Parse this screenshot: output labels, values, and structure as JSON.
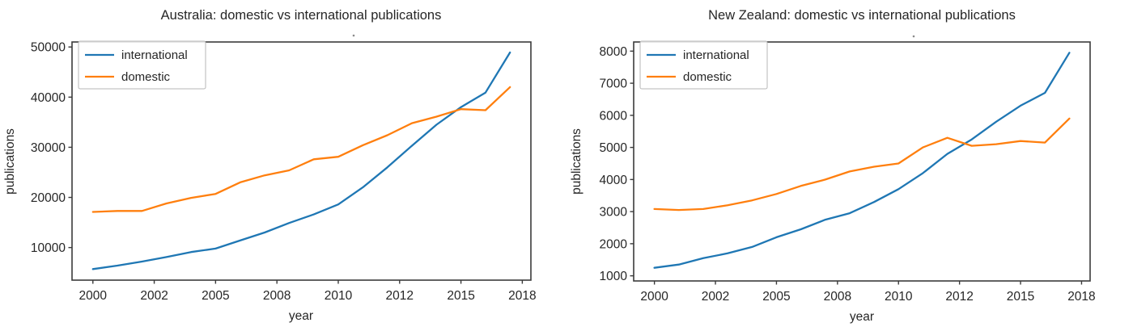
{
  "figure": {
    "background": "#ffffff",
    "text_color": "#262626"
  },
  "chart_data": [
    {
      "type": "line",
      "title": "Australia: domestic vs international publications",
      "xlabel": "year",
      "ylabel": "publications",
      "grid": false,
      "legend_position": "upper left",
      "legend": [
        "international",
        "domestic"
      ],
      "x": [
        2000,
        2001,
        2002,
        2003,
        2004,
        2005,
        2006,
        2007,
        2008,
        2009,
        2010,
        2011,
        2012,
        2013,
        2014,
        2015,
        2016,
        2017
      ],
      "series": [
        {
          "name": "international",
          "color": "#1f77b4",
          "values": [
            5700,
            6400,
            7200,
            8100,
            9100,
            9800,
            11400,
            13000,
            14900,
            16600,
            18600,
            22000,
            26000,
            30300,
            34500,
            38000,
            40900,
            48900
          ]
        },
        {
          "name": "domestic",
          "color": "#ff7f0e",
          "values": [
            17100,
            17300,
            17300,
            18800,
            19900,
            20700,
            23000,
            24400,
            25400,
            27600,
            28100,
            30400,
            32400,
            34800,
            36100,
            37600,
            37400,
            42000
          ]
        }
      ],
      "yticks": [
        10000,
        20000,
        30000,
        40000,
        50000
      ],
      "ytick_labels": [
        "10000",
        "20000",
        "30000",
        "40000",
        "50000"
      ],
      "xticks": [
        {
          "x": 2000,
          "label": "2000"
        },
        {
          "x": 2002.5,
          "label": "2002"
        },
        {
          "x": 2005,
          "label": "2005"
        },
        {
          "x": 2007.5,
          "label": "2008"
        },
        {
          "x": 2010,
          "label": "2010"
        },
        {
          "x": 2012.5,
          "label": "2012"
        },
        {
          "x": 2015,
          "label": "2015"
        },
        {
          "x": 2017.5,
          "label": "2018"
        }
      ],
      "xlim": [
        1999.15,
        2017.85
      ],
      "ylim": [
        3500,
        51000
      ]
    },
    {
      "type": "line",
      "title": "New Zealand: domestic vs international publications",
      "xlabel": "year",
      "ylabel": "publications",
      "grid": false,
      "legend_position": "upper left",
      "legend": [
        "international",
        "domestic"
      ],
      "x": [
        2000,
        2001,
        2002,
        2003,
        2004,
        2005,
        2006,
        2007,
        2008,
        2009,
        2010,
        2011,
        2012,
        2013,
        2014,
        2015,
        2016,
        2017
      ],
      "series": [
        {
          "name": "international",
          "color": "#1f77b4",
          "values": [
            1250,
            1350,
            1550,
            1700,
            1900,
            2200,
            2450,
            2750,
            2950,
            3300,
            3700,
            4200,
            4800,
            5250,
            5800,
            6300,
            6700,
            7950
          ]
        },
        {
          "name": "domestic",
          "color": "#ff7f0e",
          "values": [
            3080,
            3050,
            3080,
            3200,
            3350,
            3550,
            3800,
            4000,
            4250,
            4400,
            4500,
            5000,
            5300,
            5050,
            5100,
            5200,
            5150,
            5900
          ]
        }
      ],
      "yticks": [
        1000,
        2000,
        3000,
        4000,
        5000,
        6000,
        7000,
        8000
      ],
      "ytick_labels": [
        "1000",
        "2000",
        "3000",
        "4000",
        "5000",
        "6000",
        "7000",
        "8000"
      ],
      "xticks": [
        {
          "x": 2000,
          "label": "2000"
        },
        {
          "x": 2002.5,
          "label": "2002"
        },
        {
          "x": 2005,
          "label": "2005"
        },
        {
          "x": 2007.5,
          "label": "2008"
        },
        {
          "x": 2010,
          "label": "2010"
        },
        {
          "x": 2012.5,
          "label": "2012"
        },
        {
          "x": 2015,
          "label": "2015"
        },
        {
          "x": 2017.5,
          "label": "2018"
        }
      ],
      "xlim": [
        1999.15,
        2017.85
      ],
      "ylim": [
        840,
        8285
      ]
    }
  ]
}
